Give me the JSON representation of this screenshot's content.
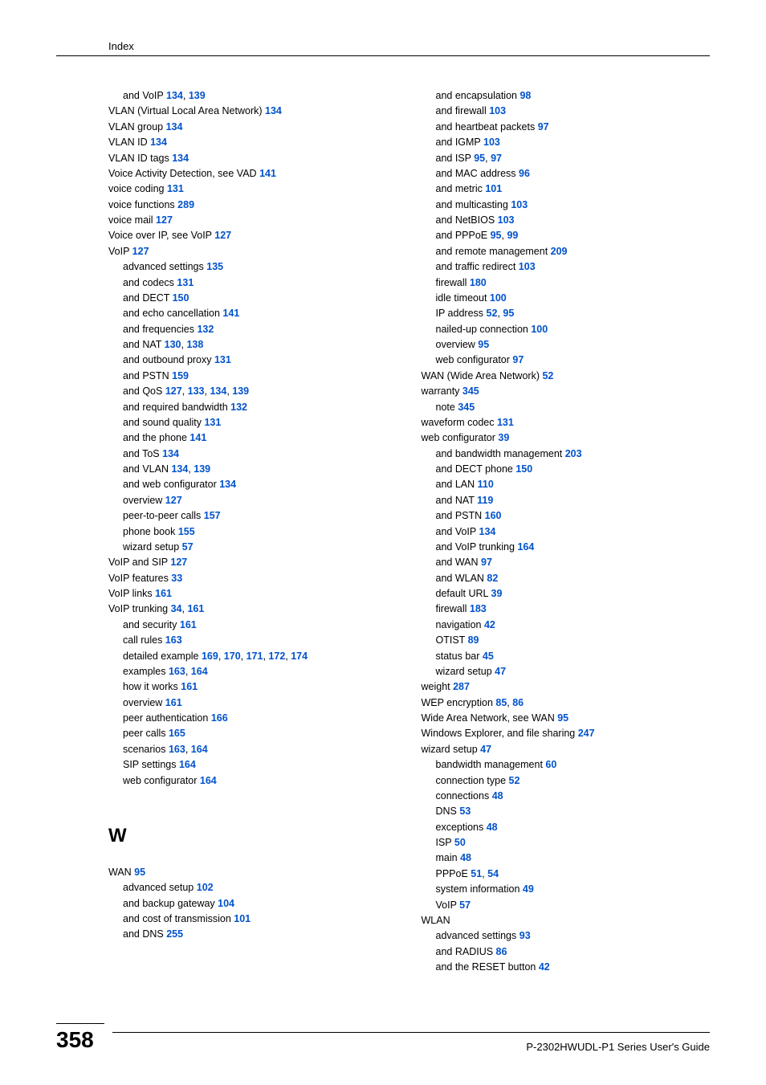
{
  "header": "Index",
  "pageNumber": "358",
  "guideTitle": "P-2302HWUDL-P1 Series User's Guide",
  "sectionLetter": "W",
  "col1_top": [
    {
      "indent": 1,
      "parts": [
        {
          "t": "and VoIP "
        },
        {
          "p": "134"
        },
        {
          "t": ", "
        },
        {
          "p": "139"
        }
      ]
    },
    {
      "indent": 0,
      "parts": [
        {
          "t": "VLAN (Virtual Local Area Network) "
        },
        {
          "p": "134"
        }
      ]
    },
    {
      "indent": 0,
      "parts": [
        {
          "t": "VLAN group "
        },
        {
          "p": "134"
        }
      ]
    },
    {
      "indent": 0,
      "parts": [
        {
          "t": "VLAN ID "
        },
        {
          "p": "134"
        }
      ]
    },
    {
      "indent": 0,
      "parts": [
        {
          "t": "VLAN ID tags "
        },
        {
          "p": "134"
        }
      ]
    },
    {
      "indent": 0,
      "parts": [
        {
          "t": "Voice Activity Detection, see VAD "
        },
        {
          "p": "141"
        }
      ]
    },
    {
      "indent": 0,
      "parts": [
        {
          "t": "voice coding "
        },
        {
          "p": "131"
        }
      ]
    },
    {
      "indent": 0,
      "parts": [
        {
          "t": "voice functions "
        },
        {
          "p": "289"
        }
      ]
    },
    {
      "indent": 0,
      "parts": [
        {
          "t": "voice mail "
        },
        {
          "p": "127"
        }
      ]
    },
    {
      "indent": 0,
      "parts": [
        {
          "t": "Voice over IP, see VoIP "
        },
        {
          "p": "127"
        }
      ]
    },
    {
      "indent": 0,
      "parts": [
        {
          "t": "VoIP "
        },
        {
          "p": "127"
        }
      ]
    },
    {
      "indent": 1,
      "parts": [
        {
          "t": "advanced settings "
        },
        {
          "p": "135"
        }
      ]
    },
    {
      "indent": 1,
      "parts": [
        {
          "t": "and codecs "
        },
        {
          "p": "131"
        }
      ]
    },
    {
      "indent": 1,
      "parts": [
        {
          "t": "and DECT "
        },
        {
          "p": "150"
        }
      ]
    },
    {
      "indent": 1,
      "parts": [
        {
          "t": "and echo cancellation "
        },
        {
          "p": "141"
        }
      ]
    },
    {
      "indent": 1,
      "parts": [
        {
          "t": "and frequencies "
        },
        {
          "p": "132"
        }
      ]
    },
    {
      "indent": 1,
      "parts": [
        {
          "t": "and NAT "
        },
        {
          "p": "130"
        },
        {
          "t": ", "
        },
        {
          "p": "138"
        }
      ]
    },
    {
      "indent": 1,
      "parts": [
        {
          "t": "and outbound proxy "
        },
        {
          "p": "131"
        }
      ]
    },
    {
      "indent": 1,
      "parts": [
        {
          "t": "and PSTN "
        },
        {
          "p": "159"
        }
      ]
    },
    {
      "indent": 1,
      "parts": [
        {
          "t": "and QoS "
        },
        {
          "p": "127"
        },
        {
          "t": ", "
        },
        {
          "p": "133"
        },
        {
          "t": ", "
        },
        {
          "p": "134"
        },
        {
          "t": ", "
        },
        {
          "p": "139"
        }
      ]
    },
    {
      "indent": 1,
      "parts": [
        {
          "t": "and required bandwidth "
        },
        {
          "p": "132"
        }
      ]
    },
    {
      "indent": 1,
      "parts": [
        {
          "t": "and sound quality "
        },
        {
          "p": "131"
        }
      ]
    },
    {
      "indent": 1,
      "parts": [
        {
          "t": "and the phone "
        },
        {
          "p": "141"
        }
      ]
    },
    {
      "indent": 1,
      "parts": [
        {
          "t": "and ToS "
        },
        {
          "p": "134"
        }
      ]
    },
    {
      "indent": 1,
      "parts": [
        {
          "t": "and VLAN "
        },
        {
          "p": "134"
        },
        {
          "t": ", "
        },
        {
          "p": "139"
        }
      ]
    },
    {
      "indent": 1,
      "parts": [
        {
          "t": "and web configurator "
        },
        {
          "p": "134"
        }
      ]
    },
    {
      "indent": 1,
      "parts": [
        {
          "t": "overview "
        },
        {
          "p": "127"
        }
      ]
    },
    {
      "indent": 1,
      "parts": [
        {
          "t": "peer-to-peer calls "
        },
        {
          "p": "157"
        }
      ]
    },
    {
      "indent": 1,
      "parts": [
        {
          "t": "phone book "
        },
        {
          "p": "155"
        }
      ]
    },
    {
      "indent": 1,
      "parts": [
        {
          "t": "wizard setup "
        },
        {
          "p": "57"
        }
      ]
    },
    {
      "indent": 0,
      "parts": [
        {
          "t": "VoIP and SIP "
        },
        {
          "p": "127"
        }
      ]
    },
    {
      "indent": 0,
      "parts": [
        {
          "t": "VoIP features "
        },
        {
          "p": "33"
        }
      ]
    },
    {
      "indent": 0,
      "parts": [
        {
          "t": "VoIP links "
        },
        {
          "p": "161"
        }
      ]
    },
    {
      "indent": 0,
      "parts": [
        {
          "t": "VoIP trunking "
        },
        {
          "p": "34"
        },
        {
          "t": ", "
        },
        {
          "p": "161"
        }
      ]
    },
    {
      "indent": 1,
      "parts": [
        {
          "t": "and security "
        },
        {
          "p": "161"
        }
      ]
    },
    {
      "indent": 1,
      "parts": [
        {
          "t": "call rules "
        },
        {
          "p": "163"
        }
      ]
    },
    {
      "indent": 1,
      "parts": [
        {
          "t": "detailed example "
        },
        {
          "p": "169"
        },
        {
          "t": ", "
        },
        {
          "p": "170"
        },
        {
          "t": ", "
        },
        {
          "p": "171"
        },
        {
          "t": ", "
        },
        {
          "p": "172"
        },
        {
          "t": ", "
        },
        {
          "p": "174"
        }
      ]
    },
    {
      "indent": 1,
      "parts": [
        {
          "t": "examples "
        },
        {
          "p": "163"
        },
        {
          "t": ", "
        },
        {
          "p": "164"
        }
      ]
    },
    {
      "indent": 1,
      "parts": [
        {
          "t": "how it works "
        },
        {
          "p": "161"
        }
      ]
    },
    {
      "indent": 1,
      "parts": [
        {
          "t": "overview "
        },
        {
          "p": "161"
        }
      ]
    },
    {
      "indent": 1,
      "parts": [
        {
          "t": "peer authentication "
        },
        {
          "p": "166"
        }
      ]
    },
    {
      "indent": 1,
      "parts": [
        {
          "t": "peer calls "
        },
        {
          "p": "165"
        }
      ]
    },
    {
      "indent": 1,
      "parts": [
        {
          "t": "scenarios "
        },
        {
          "p": "163"
        },
        {
          "t": ", "
        },
        {
          "p": "164"
        }
      ]
    },
    {
      "indent": 1,
      "parts": [
        {
          "t": "SIP settings "
        },
        {
          "p": "164"
        }
      ]
    },
    {
      "indent": 1,
      "parts": [
        {
          "t": "web configurator "
        },
        {
          "p": "164"
        }
      ]
    }
  ],
  "col1_bottom": [
    {
      "indent": 0,
      "parts": [
        {
          "t": "WAN "
        },
        {
          "p": "95"
        }
      ]
    },
    {
      "indent": 1,
      "parts": [
        {
          "t": "advanced setup "
        },
        {
          "p": "102"
        }
      ]
    },
    {
      "indent": 1,
      "parts": [
        {
          "t": "and backup gateway "
        },
        {
          "p": "104"
        }
      ]
    },
    {
      "indent": 1,
      "parts": [
        {
          "t": "and cost of transmission "
        },
        {
          "p": "101"
        }
      ]
    },
    {
      "indent": 1,
      "parts": [
        {
          "t": "and DNS "
        },
        {
          "p": "255"
        }
      ]
    }
  ],
  "col2": [
    {
      "indent": 1,
      "parts": [
        {
          "t": "and encapsulation "
        },
        {
          "p": "98"
        }
      ]
    },
    {
      "indent": 1,
      "parts": [
        {
          "t": "and firewall "
        },
        {
          "p": "103"
        }
      ]
    },
    {
      "indent": 1,
      "parts": [
        {
          "t": "and heartbeat packets "
        },
        {
          "p": "97"
        }
      ]
    },
    {
      "indent": 1,
      "parts": [
        {
          "t": "and IGMP "
        },
        {
          "p": "103"
        }
      ]
    },
    {
      "indent": 1,
      "parts": [
        {
          "t": "and ISP "
        },
        {
          "p": "95"
        },
        {
          "t": ", "
        },
        {
          "p": "97"
        }
      ]
    },
    {
      "indent": 1,
      "parts": [
        {
          "t": "and MAC address "
        },
        {
          "p": "96"
        }
      ]
    },
    {
      "indent": 1,
      "parts": [
        {
          "t": "and metric "
        },
        {
          "p": "101"
        }
      ]
    },
    {
      "indent": 1,
      "parts": [
        {
          "t": "and multicasting "
        },
        {
          "p": "103"
        }
      ]
    },
    {
      "indent": 1,
      "parts": [
        {
          "t": "and NetBIOS "
        },
        {
          "p": "103"
        }
      ]
    },
    {
      "indent": 1,
      "parts": [
        {
          "t": "and PPPoE "
        },
        {
          "p": "95"
        },
        {
          "t": ", "
        },
        {
          "p": "99"
        }
      ]
    },
    {
      "indent": 1,
      "parts": [
        {
          "t": "and remote management "
        },
        {
          "p": "209"
        }
      ]
    },
    {
      "indent": 1,
      "parts": [
        {
          "t": "and traffic redirect "
        },
        {
          "p": "103"
        }
      ]
    },
    {
      "indent": 1,
      "parts": [
        {
          "t": "firewall "
        },
        {
          "p": "180"
        }
      ]
    },
    {
      "indent": 1,
      "parts": [
        {
          "t": "idle timeout "
        },
        {
          "p": "100"
        }
      ]
    },
    {
      "indent": 1,
      "parts": [
        {
          "t": "IP address "
        },
        {
          "p": "52"
        },
        {
          "t": ", "
        },
        {
          "p": "95"
        }
      ]
    },
    {
      "indent": 1,
      "parts": [
        {
          "t": "nailed-up connection "
        },
        {
          "p": "100"
        }
      ]
    },
    {
      "indent": 1,
      "parts": [
        {
          "t": "overview "
        },
        {
          "p": "95"
        }
      ]
    },
    {
      "indent": 1,
      "parts": [
        {
          "t": "web configurator "
        },
        {
          "p": "97"
        }
      ]
    },
    {
      "indent": 0,
      "parts": [
        {
          "t": "WAN (Wide Area Network) "
        },
        {
          "p": "52"
        }
      ]
    },
    {
      "indent": 0,
      "parts": [
        {
          "t": "warranty "
        },
        {
          "p": "345"
        }
      ]
    },
    {
      "indent": 1,
      "parts": [
        {
          "t": "note "
        },
        {
          "p": "345"
        }
      ]
    },
    {
      "indent": 0,
      "parts": [
        {
          "t": "waveform codec "
        },
        {
          "p": "131"
        }
      ]
    },
    {
      "indent": 0,
      "parts": [
        {
          "t": "web configurator "
        },
        {
          "p": "39"
        }
      ]
    },
    {
      "indent": 1,
      "parts": [
        {
          "t": "and bandwidth management "
        },
        {
          "p": "203"
        }
      ]
    },
    {
      "indent": 1,
      "parts": [
        {
          "t": "and DECT phone "
        },
        {
          "p": "150"
        }
      ]
    },
    {
      "indent": 1,
      "parts": [
        {
          "t": "and LAN "
        },
        {
          "p": "110"
        }
      ]
    },
    {
      "indent": 1,
      "parts": [
        {
          "t": "and NAT "
        },
        {
          "p": "119"
        }
      ]
    },
    {
      "indent": 1,
      "parts": [
        {
          "t": "and PSTN "
        },
        {
          "p": "160"
        }
      ]
    },
    {
      "indent": 1,
      "parts": [
        {
          "t": "and VoIP "
        },
        {
          "p": "134"
        }
      ]
    },
    {
      "indent": 1,
      "parts": [
        {
          "t": "and VoIP trunking "
        },
        {
          "p": "164"
        }
      ]
    },
    {
      "indent": 1,
      "parts": [
        {
          "t": "and WAN "
        },
        {
          "p": "97"
        }
      ]
    },
    {
      "indent": 1,
      "parts": [
        {
          "t": "and WLAN "
        },
        {
          "p": "82"
        }
      ]
    },
    {
      "indent": 1,
      "parts": [
        {
          "t": "default URL "
        },
        {
          "p": "39"
        }
      ]
    },
    {
      "indent": 1,
      "parts": [
        {
          "t": "firewall "
        },
        {
          "p": "183"
        }
      ]
    },
    {
      "indent": 1,
      "parts": [
        {
          "t": "navigation "
        },
        {
          "p": "42"
        }
      ]
    },
    {
      "indent": 1,
      "parts": [
        {
          "t": "OTIST "
        },
        {
          "p": "89"
        }
      ]
    },
    {
      "indent": 1,
      "parts": [
        {
          "t": "status bar "
        },
        {
          "p": "45"
        }
      ]
    },
    {
      "indent": 1,
      "parts": [
        {
          "t": "wizard setup "
        },
        {
          "p": "47"
        }
      ]
    },
    {
      "indent": 0,
      "parts": [
        {
          "t": "weight "
        },
        {
          "p": "287"
        }
      ]
    },
    {
      "indent": 0,
      "parts": [
        {
          "t": "WEP encryption "
        },
        {
          "p": "85"
        },
        {
          "t": ", "
        },
        {
          "p": "86"
        }
      ]
    },
    {
      "indent": 0,
      "parts": [
        {
          "t": "Wide Area Network, see WAN "
        },
        {
          "p": "95"
        }
      ]
    },
    {
      "indent": 0,
      "parts": [
        {
          "t": "Windows Explorer, and file sharing "
        },
        {
          "p": "247"
        }
      ]
    },
    {
      "indent": 0,
      "parts": [
        {
          "t": "wizard setup "
        },
        {
          "p": "47"
        }
      ]
    },
    {
      "indent": 1,
      "parts": [
        {
          "t": "bandwidth management "
        },
        {
          "p": "60"
        }
      ]
    },
    {
      "indent": 1,
      "parts": [
        {
          "t": "connection type "
        },
        {
          "p": "52"
        }
      ]
    },
    {
      "indent": 1,
      "parts": [
        {
          "t": "connections "
        },
        {
          "p": "48"
        }
      ]
    },
    {
      "indent": 1,
      "parts": [
        {
          "t": "DNS "
        },
        {
          "p": "53"
        }
      ]
    },
    {
      "indent": 1,
      "parts": [
        {
          "t": "exceptions "
        },
        {
          "p": "48"
        }
      ]
    },
    {
      "indent": 1,
      "parts": [
        {
          "t": "ISP "
        },
        {
          "p": "50"
        }
      ]
    },
    {
      "indent": 1,
      "parts": [
        {
          "t": "main "
        },
        {
          "p": "48"
        }
      ]
    },
    {
      "indent": 1,
      "parts": [
        {
          "t": "PPPoE "
        },
        {
          "p": "51"
        },
        {
          "t": ", "
        },
        {
          "p": "54"
        }
      ]
    },
    {
      "indent": 1,
      "parts": [
        {
          "t": "system information "
        },
        {
          "p": "49"
        }
      ]
    },
    {
      "indent": 1,
      "parts": [
        {
          "t": "VoIP "
        },
        {
          "p": "57"
        }
      ]
    },
    {
      "indent": 0,
      "parts": [
        {
          "t": "WLAN"
        }
      ]
    },
    {
      "indent": 1,
      "parts": [
        {
          "t": "advanced settings "
        },
        {
          "p": "93"
        }
      ]
    },
    {
      "indent": 1,
      "parts": [
        {
          "t": "and RADIUS "
        },
        {
          "p": "86"
        }
      ]
    },
    {
      "indent": 1,
      "parts": [
        {
          "t": "and the RESET button "
        },
        {
          "p": "42"
        }
      ]
    }
  ]
}
